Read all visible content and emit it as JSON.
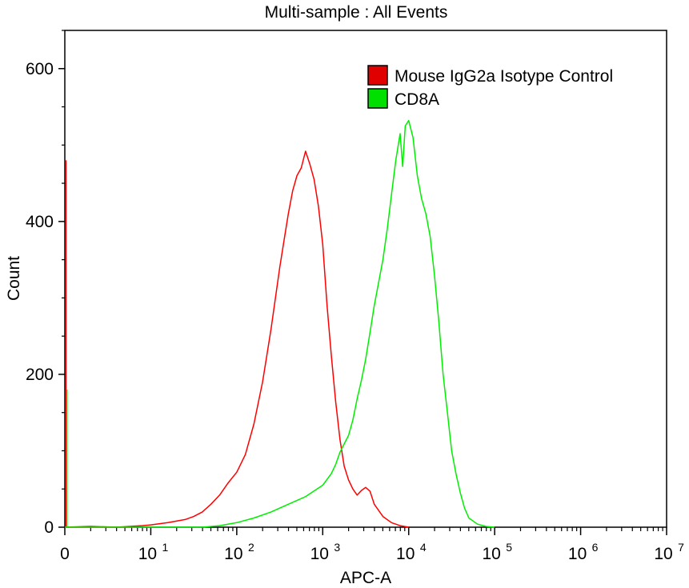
{
  "chart_data": {
    "type": "line",
    "title": "Multi-sample : All Events",
    "xlabel": "APC-A",
    "ylabel": "Count",
    "x_scale": "log (with 0 at origin)",
    "xlim_log10": [
      0,
      7
    ],
    "ylim": [
      0,
      650
    ],
    "y_ticks": [
      0,
      200,
      400,
      600
    ],
    "x_ticks": [
      {
        "base": "0",
        "exp": ""
      },
      {
        "base": "10",
        "exp": "1"
      },
      {
        "base": "10",
        "exp": "2"
      },
      {
        "base": "10",
        "exp": "3"
      },
      {
        "base": "10",
        "exp": "4"
      },
      {
        "base": "10",
        "exp": "5"
      },
      {
        "base": "10",
        "exp": "6"
      },
      {
        "base": "10",
        "exp": "7"
      }
    ],
    "legend_position": "top-right",
    "series": [
      {
        "name": "Mouse IgG2a Isotype Control",
        "color": "#ff0000",
        "legend_color": "#e00000",
        "origin_spike": 480,
        "points": [
          [
            0.0,
            0
          ],
          [
            0.3,
            1
          ],
          [
            0.6,
            0
          ],
          [
            0.9,
            2
          ],
          [
            1.0,
            3
          ],
          [
            1.2,
            6
          ],
          [
            1.4,
            10
          ],
          [
            1.5,
            14
          ],
          [
            1.6,
            20
          ],
          [
            1.7,
            30
          ],
          [
            1.8,
            42
          ],
          [
            1.9,
            58
          ],
          [
            2.0,
            72
          ],
          [
            2.1,
            95
          ],
          [
            2.2,
            135
          ],
          [
            2.3,
            190
          ],
          [
            2.35,
            225
          ],
          [
            2.4,
            260
          ],
          [
            2.45,
            300
          ],
          [
            2.5,
            340
          ],
          [
            2.55,
            375
          ],
          [
            2.6,
            410
          ],
          [
            2.65,
            440
          ],
          [
            2.7,
            460
          ],
          [
            2.75,
            470
          ],
          [
            2.8,
            492
          ],
          [
            2.85,
            475
          ],
          [
            2.9,
            455
          ],
          [
            2.95,
            420
          ],
          [
            3.0,
            370
          ],
          [
            3.05,
            290
          ],
          [
            3.1,
            225
          ],
          [
            3.15,
            165
          ],
          [
            3.2,
            115
          ],
          [
            3.25,
            80
          ],
          [
            3.3,
            62
          ],
          [
            3.35,
            50
          ],
          [
            3.4,
            42
          ],
          [
            3.45,
            48
          ],
          [
            3.5,
            52
          ],
          [
            3.55,
            47
          ],
          [
            3.6,
            30
          ],
          [
            3.7,
            14
          ],
          [
            3.8,
            6
          ],
          [
            3.9,
            2
          ],
          [
            4.0,
            0
          ]
        ]
      },
      {
        "name": "CD8A",
        "color": "#00ee00",
        "legend_color": "#00e000",
        "origin_spike": 180,
        "points": [
          [
            0.0,
            0
          ],
          [
            1.6,
            0
          ],
          [
            1.8,
            2
          ],
          [
            2.0,
            6
          ],
          [
            2.2,
            12
          ],
          [
            2.4,
            20
          ],
          [
            2.6,
            30
          ],
          [
            2.8,
            40
          ],
          [
            3.0,
            55
          ],
          [
            3.1,
            70
          ],
          [
            3.15,
            82
          ],
          [
            3.2,
            98
          ],
          [
            3.3,
            120
          ],
          [
            3.35,
            140
          ],
          [
            3.4,
            168
          ],
          [
            3.45,
            192
          ],
          [
            3.5,
            220
          ],
          [
            3.55,
            255
          ],
          [
            3.6,
            290
          ],
          [
            3.65,
            320
          ],
          [
            3.7,
            350
          ],
          [
            3.75,
            390
          ],
          [
            3.8,
            435
          ],
          [
            3.85,
            480
          ],
          [
            3.9,
            515
          ],
          [
            3.93,
            472
          ],
          [
            3.96,
            525
          ],
          [
            4.0,
            532
          ],
          [
            4.05,
            510
          ],
          [
            4.1,
            460
          ],
          [
            4.15,
            430
          ],
          [
            4.2,
            410
          ],
          [
            4.25,
            380
          ],
          [
            4.3,
            330
          ],
          [
            4.35,
            270
          ],
          [
            4.4,
            200
          ],
          [
            4.45,
            150
          ],
          [
            4.5,
            100
          ],
          [
            4.55,
            70
          ],
          [
            4.6,
            45
          ],
          [
            4.65,
            25
          ],
          [
            4.7,
            12
          ],
          [
            4.8,
            4
          ],
          [
            4.9,
            1
          ],
          [
            5.0,
            0
          ]
        ]
      }
    ]
  }
}
